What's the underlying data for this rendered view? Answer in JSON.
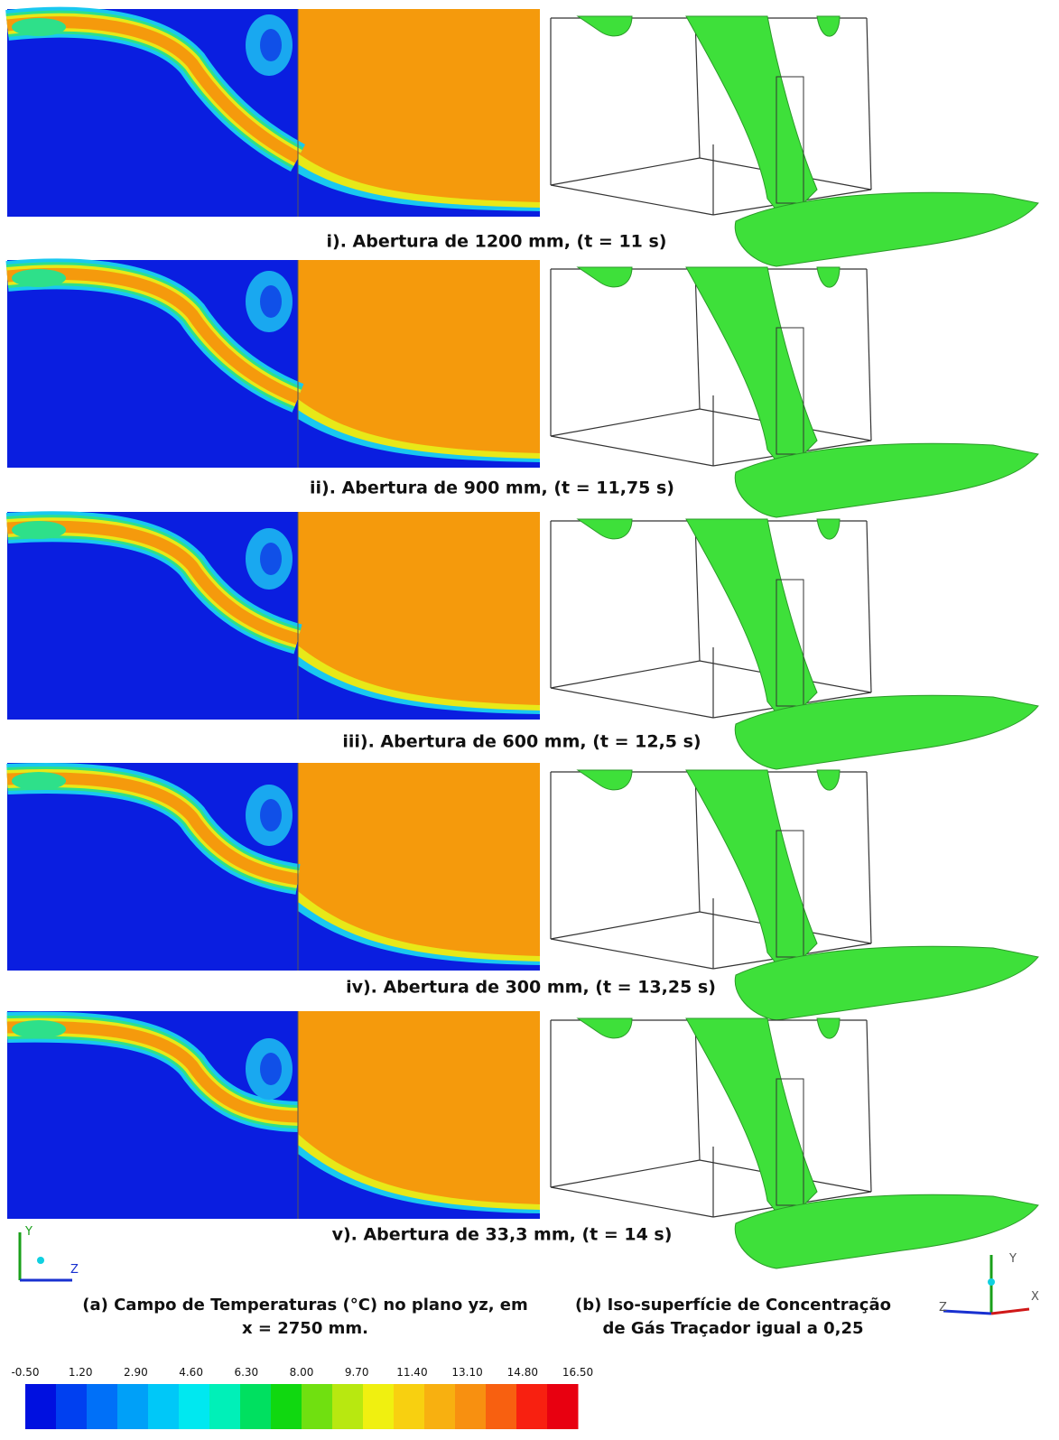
{
  "rows": [
    {
      "caption": "i). Abertura de 1200 mm, (t = 11 s)"
    },
    {
      "caption": "ii). Abertura de 900 mm, (t = 11,75 s)"
    },
    {
      "caption": "iii). Abertura de 600 mm, (t = 12,5 s)"
    },
    {
      "caption": "iv). Abertura de 300 mm, (t = 13,25 s)"
    },
    {
      "caption": "v). Abertura de 33,3 mm, (t = 14 s)"
    }
  ],
  "captions": {
    "a": [
      "(a) Campo de Temperaturas (°C) no plano yz, em",
      "x = 2750 mm."
    ],
    "b": [
      "(b) Iso-superfície de Concentração",
      "de Gás Traçador igual a 0,25"
    ]
  },
  "axes_left": {
    "y": "Y",
    "z": "Z"
  },
  "axes_right": {
    "y": "Y",
    "z": "Z",
    "x": "X"
  },
  "colorbar": {
    "labels": [
      "-0.50",
      "1.20",
      "2.90",
      "4.60",
      "6.30",
      "8.00",
      "9.70",
      "11.40",
      "13.10",
      "14.80",
      "16.50"
    ]
  }
}
